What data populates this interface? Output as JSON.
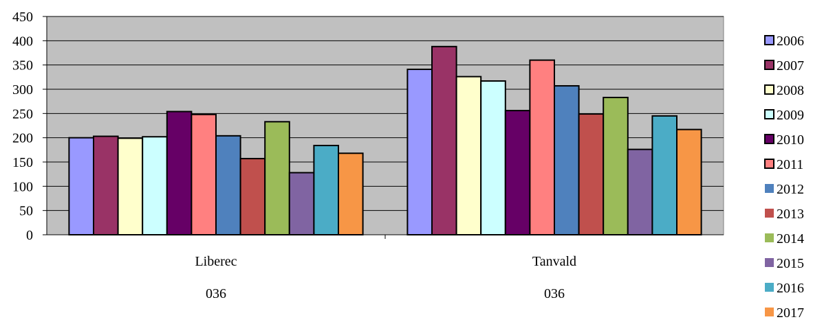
{
  "chart_data": {
    "type": "bar",
    "title": "",
    "xlabel": "",
    "ylabel": "",
    "ylim": [
      0,
      450
    ],
    "yticks": [
      "0",
      "50",
      "100",
      "150",
      "200",
      "250",
      "300",
      "350",
      "400",
      "450"
    ],
    "grid": true,
    "legend_position": "right",
    "plot_background": "#c0c0c0",
    "categories": [
      "Liberec",
      "Tanvald"
    ],
    "category_sublabels": [
      "036",
      "036"
    ],
    "series": [
      {
        "name": "2006",
        "color": "#9999ff",
        "values": [
          200,
          341
        ]
      },
      {
        "name": "2007",
        "color": "#993366",
        "values": [
          203,
          388
        ]
      },
      {
        "name": "2008",
        "color": "#ffffcc",
        "values": [
          199,
          326
        ]
      },
      {
        "name": "2009",
        "color": "#ccffff",
        "values": [
          202,
          317
        ]
      },
      {
        "name": "2010",
        "color": "#660066",
        "values": [
          254,
          256
        ]
      },
      {
        "name": "2011",
        "color": "#ff8080",
        "values": [
          248,
          360
        ]
      },
      {
        "name": "2012",
        "color": "#4f81bd",
        "values": [
          204,
          307
        ]
      },
      {
        "name": "2013",
        "color": "#c0504d",
        "values": [
          157,
          249
        ]
      },
      {
        "name": "2014",
        "color": "#9bbb59",
        "values": [
          233,
          283
        ]
      },
      {
        "name": "2015",
        "color": "#8064a2",
        "values": [
          128,
          176
        ]
      },
      {
        "name": "2016",
        "color": "#4bacc6",
        "values": [
          184,
          245
        ]
      },
      {
        "name": "2017",
        "color": "#f79646",
        "values": [
          168,
          217
        ]
      }
    ]
  }
}
